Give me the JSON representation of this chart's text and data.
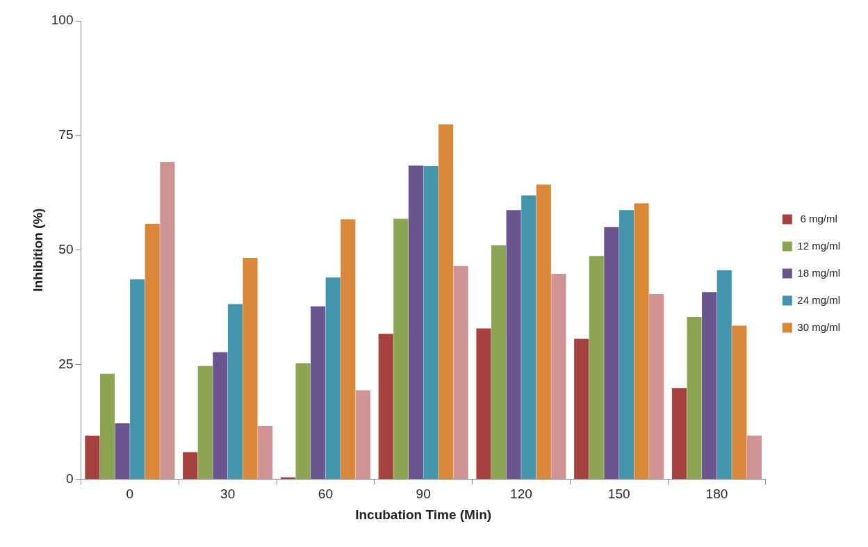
{
  "chart_data": {
    "type": "bar",
    "xlabel": "Incubation Time (Min)",
    "ylabel": "Inhibition (%)",
    "categories": [
      "0",
      "30",
      "60",
      "90",
      "120",
      "150",
      "180"
    ],
    "series": [
      {
        "name": " 6 mg/ml",
        "color": "#a5423f",
        "values": [
          9.5,
          5.9,
          0.4,
          31.7,
          32.9,
          30.6,
          19.9
        ]
      },
      {
        "name": "12 mg/ml",
        "color": "#8ba552",
        "values": [
          23.0,
          24.7,
          25.3,
          56.8,
          51.0,
          48.7,
          35.4
        ]
      },
      {
        "name": "18 mg/ml",
        "color": "#6b5591",
        "values": [
          12.2,
          27.7,
          37.7,
          68.4,
          58.7,
          55.0,
          40.8
        ]
      },
      {
        "name": "24 mg/ml",
        "color": "#4295ad",
        "values": [
          43.6,
          38.2,
          44.0,
          68.3,
          61.9,
          58.7,
          45.6
        ]
      },
      {
        "name": "30 mg/ml",
        "color": "#d98738",
        "values": [
          55.7,
          48.3,
          56.7,
          77.4,
          64.3,
          60.2,
          33.5
        ]
      },
      {
        "color": "#d09393",
        "values": [
          69.2,
          11.6,
          19.4,
          46.5,
          44.8,
          40.4,
          9.5
        ]
      }
    ],
    "ylim": [
      0,
      100
    ],
    "yticks": [
      0,
      25,
      50,
      75,
      100
    ],
    "grid": false,
    "legend": "right"
  }
}
